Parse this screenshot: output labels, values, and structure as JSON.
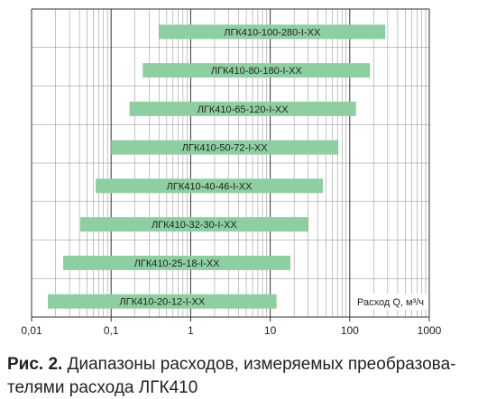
{
  "chart_data": {
    "type": "range_bar",
    "categories": [
      "ЛГК410-100-280-I-XX",
      "ЛГК410-80-180-I-XX",
      "ЛГК410-65-120-I-XX",
      "ЛГК410-50-72-I-XX",
      "ЛГК410-40-46-I-XX",
      "ЛГК410-32-30-I-XX",
      "ЛГК410-25-18-I-XX",
      "ЛГК410-20-12-I-XX"
    ],
    "low": [
      0.4,
      0.25,
      0.17,
      0.1,
      0.064,
      0.041,
      0.025,
      0.016
    ],
    "high": [
      280,
      180,
      120,
      72,
      46,
      30,
      18,
      12
    ],
    "color": "#8dcfa0",
    "xlabel": "Расход Q, м³/ч",
    "xscale": "log",
    "xlim": [
      0.01,
      1000
    ],
    "xticks": [
      {
        "value": 0.01,
        "label": "0,01"
      },
      {
        "value": 0.1,
        "label": "0,1"
      },
      1,
      10,
      100,
      1000
    ],
    "grid": true
  },
  "caption": {
    "label": "Рис. 2.",
    "lines": [
      "Диапазоны расходов, измеряемых преобразова-",
      "телями расхода ЛГК410"
    ]
  }
}
